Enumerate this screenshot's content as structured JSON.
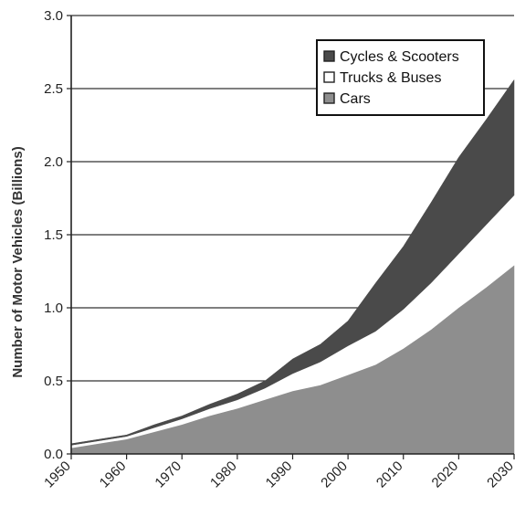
{
  "chart_data": {
    "type": "area",
    "stacked": true,
    "xlabel": "",
    "ylabel": "Number of Motor Vehicles (Billions)",
    "ylim": [
      0,
      3.0
    ],
    "xlim": [
      1950,
      2030
    ],
    "x_ticks": [
      "1950",
      "1960",
      "1970",
      "1980",
      "1990",
      "2000",
      "2010",
      "2020",
      "2030"
    ],
    "y_ticks": [
      "0.0",
      "0.5",
      "1.0",
      "1.5",
      "2.0",
      "2.5",
      "3.0"
    ],
    "grid": "horizontal",
    "legend_position": "top-right",
    "x": [
      1950,
      1955,
      1960,
      1965,
      1970,
      1975,
      1980,
      1985,
      1990,
      1995,
      2000,
      2005,
      2010,
      2015,
      2020,
      2025,
      2030
    ],
    "series": [
      {
        "name": "Cars",
        "color": "#8e8e8e",
        "values": [
          0.04,
          0.07,
          0.1,
          0.15,
          0.2,
          0.26,
          0.31,
          0.37,
          0.43,
          0.47,
          0.54,
          0.61,
          0.72,
          0.85,
          1.0,
          1.14,
          1.29
        ]
      },
      {
        "name": "Trucks & Buses",
        "color": "#ffffff",
        "values": [
          0.02,
          0.02,
          0.02,
          0.03,
          0.04,
          0.05,
          0.06,
          0.08,
          0.12,
          0.16,
          0.2,
          0.23,
          0.27,
          0.32,
          0.37,
          0.43,
          0.48
        ]
      },
      {
        "name": "Cycles & Scooters",
        "color": "#4a4a4a",
        "values": [
          0.01,
          0.01,
          0.01,
          0.02,
          0.02,
          0.03,
          0.04,
          0.05,
          0.1,
          0.12,
          0.17,
          0.33,
          0.43,
          0.55,
          0.66,
          0.72,
          0.79
        ]
      }
    ],
    "legend": [
      {
        "name": "Cycles & Scooters",
        "color": "#4a4a4a"
      },
      {
        "name": "Trucks & Buses",
        "color": "#ffffff"
      },
      {
        "name": "Cars",
        "color": "#8e8e8e"
      }
    ]
  }
}
